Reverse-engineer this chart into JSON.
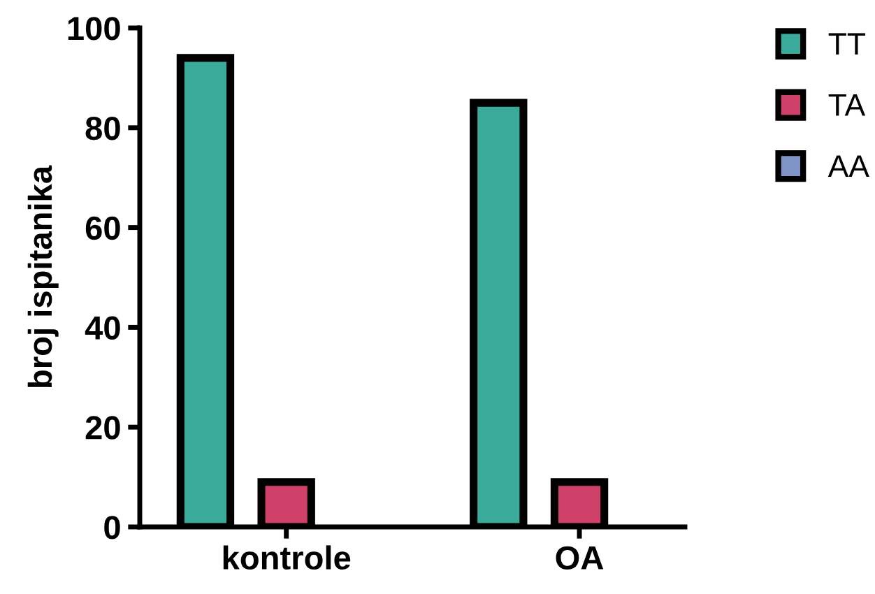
{
  "chart_data": {
    "type": "bar",
    "ylabel": "broj ispitanika",
    "categories": [
      "kontrole",
      "OA"
    ],
    "series": [
      {
        "name": "TT",
        "color": "#3aab9a",
        "values": [
          94,
          85
        ]
      },
      {
        "name": "TA",
        "color": "#d0416a",
        "values": [
          9,
          9
        ]
      },
      {
        "name": "AA",
        "color": "#7f93c6",
        "values": [
          0,
          0
        ]
      }
    ],
    "ylim": [
      0,
      100
    ],
    "yticks": [
      0,
      20,
      40,
      60,
      80,
      100
    ],
    "grid": false,
    "legend": "top right"
  }
}
